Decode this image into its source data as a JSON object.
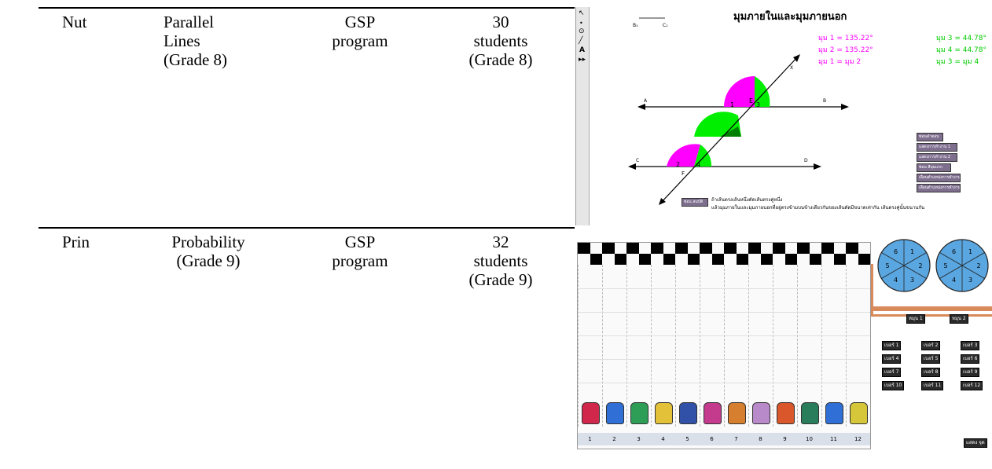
{
  "rows": [
    {
      "teacher": "Nut",
      "topic": [
        "Parallel",
        "Lines",
        "(Grade 8)"
      ],
      "tool": [
        "GSP",
        "program"
      ],
      "participants": [
        "30",
        "students",
        "(Grade 8)"
      ],
      "screenshot": {
        "title": "มุมภายในและมุมภายนอก",
        "seg_b": "B₁",
        "seg_c": "C₁",
        "measures_left": [
          "มุม 1 = 135.22°",
          "มุม 2 = 135.22°",
          "มุม 1 = มุม 2"
        ],
        "measures_right": [
          "มุม 3 = 44.78°",
          "มุม 4 = 44.78°",
          "มุม 3 = มุม 4"
        ],
        "point_labels": {
          "a": "A",
          "b": "B",
          "c": "C",
          "d": "D",
          "e": "E",
          "f": "F",
          "x": "X"
        },
        "angle_numbers": [
          "1",
          "3",
          "2",
          "4"
        ],
        "buttons": [
          "ซ่อนคำตอบ",
          "แสดงการทำงาน 1",
          "แสดงการทำงาน 2",
          "ซ่อน สีมุมแรก",
          "เลื่อนตำแหน่งการทำงาน 1",
          "เลื่อนตำแหน่งการทำงาน 2"
        ],
        "hint_button": "ซ่อน สมบัติ",
        "hint_text_1": "ถ้าเส้นตรงเส้นหนึ่งตัดเส้นตรงคู่หนึ่ง",
        "hint_text_2": "แล้วมุมภายในและมุมภายนอกที่อยู่ตรงข้ามบนข้างเดียวกันของเส้นตัดมีขนาดเท่ากัน เส้นตรงคู่นั้นขนานกัน",
        "colors": {
          "magenta": "#ff00ff",
          "green": "#00ee00",
          "dark_green": "#008000"
        }
      }
    },
    {
      "teacher": "Prin",
      "topic": [
        "Probability",
        "(Grade 9)"
      ],
      "tool": [
        "GSP",
        "program"
      ],
      "participants": [
        "32",
        "students",
        "(Grade 9)"
      ],
      "screenshot": {
        "spinner_left": [
          "1",
          "2",
          "3",
          "4",
          "5",
          "6"
        ],
        "spinner_right": [
          "1",
          "2",
          "3",
          "4",
          "5",
          "6"
        ],
        "spin_buttons": [
          "หมุน 1",
          "หมุน 2"
        ],
        "horse_buttons": [
          "เบอร์ 1",
          "เบอร์ 2",
          "เบอร์ 3",
          "เบอร์ 4",
          "เบอร์ 5",
          "เบอร์ 6",
          "เบอร์ 7",
          "เบอร์ 8",
          "เบอร์ 9",
          "เบอร์ 10",
          "เบอร์ 11",
          "เบอร์ 12"
        ],
        "lane_numbers": [
          "1",
          "2",
          "3",
          "4",
          "5",
          "6",
          "7",
          "8",
          "9",
          "10",
          "11",
          "12"
        ],
        "show_button": "แสดง จุด",
        "car_colors": [
          "#d1274b",
          "#2f6fd6",
          "#2e9e57",
          "#e3c23a",
          "#3151a8",
          "#c43b8e",
          "#d6802f",
          "#b98ac9",
          "#d9572b",
          "#2a7d5b",
          "#2f6fd6",
          "#d6c63a"
        ],
        "spinner_color": "#5aa6e0"
      }
    }
  ]
}
